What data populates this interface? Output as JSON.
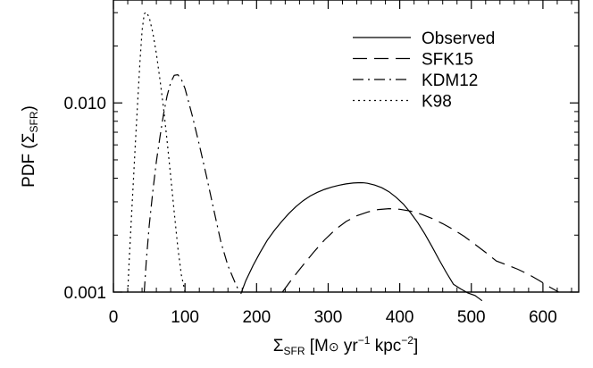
{
  "chart_data": {
    "type": "line",
    "title": "",
    "xlabel": {
      "symbol": "Σ",
      "sub": "SFR",
      "units_open": " [M",
      "sun": "⊙",
      "units_yr": " yr",
      "yr_exp": "−1",
      "units_kpc": " kpc",
      "kpc_exp": "−2",
      "units_close": "]"
    },
    "ylabel": {
      "prefix": "PDF (",
      "symbol": "Σ",
      "sub": "SFR",
      "suffix": ")"
    },
    "xlim": [
      0,
      650
    ],
    "ylim": [
      0.001,
      0.035
    ],
    "y_scale": "log",
    "grid": false,
    "legend_position": "top-right",
    "x_ticks": [
      0,
      100,
      200,
      300,
      400,
      500,
      600
    ],
    "x_tick_labels": [
      "0",
      "100",
      "200",
      "300",
      "400",
      "500",
      "600"
    ],
    "y_ticks": [
      0.001,
      0.01
    ],
    "y_tick_labels": [
      "0.001",
      "0.010"
    ],
    "series": [
      {
        "name": "Observed",
        "dash": "solid",
        "x": [
          178,
          185,
          195,
          205,
          215,
          225,
          235,
          245,
          255,
          265,
          275,
          285,
          295,
          305,
          315,
          325,
          335,
          345,
          350,
          355,
          365,
          375,
          385,
          395,
          405,
          415,
          425,
          435,
          445,
          455,
          465,
          475,
          485,
          495,
          505,
          510,
          515
        ],
        "y": [
          0.00098,
          0.00115,
          0.00138,
          0.00162,
          0.00188,
          0.00212,
          0.00236,
          0.0026,
          0.00283,
          0.00304,
          0.00322,
          0.00337,
          0.00349,
          0.00359,
          0.00367,
          0.00373,
          0.00377,
          0.00379,
          0.00378,
          0.00376,
          0.00368,
          0.00356,
          0.00339,
          0.00317,
          0.00292,
          0.00263,
          0.00233,
          0.00203,
          0.00174,
          0.00148,
          0.00127,
          0.0011,
          0.00104,
          0.00099,
          0.00096,
          0.00093,
          0.0009
        ]
      },
      {
        "name": "SFK15",
        "dash": "long-dash",
        "x": [
          236,
          250,
          265,
          280,
          295,
          310,
          325,
          340,
          355,
          370,
          385,
          400,
          415,
          430,
          445,
          460,
          475,
          490,
          505,
          520,
          535,
          550,
          565,
          580,
          595,
          610,
          622
        ],
        "y": [
          0.001,
          0.00118,
          0.00139,
          0.00163,
          0.00189,
          0.00214,
          0.00236,
          0.00253,
          0.00265,
          0.00273,
          0.00276,
          0.00274,
          0.00268,
          0.00258,
          0.00245,
          0.0023,
          0.00214,
          0.00197,
          0.00179,
          0.00162,
          0.00146,
          0.00139,
          0.00132,
          0.00124,
          0.00115,
          0.00106,
          0.001
        ]
      },
      {
        "name": "KDM12",
        "dash": "dash-dot",
        "x": [
          43,
          46,
          50,
          55,
          60,
          65,
          70,
          75,
          80,
          85,
          90,
          95,
          100,
          110,
          120,
          130,
          140,
          150,
          160,
          170,
          176
        ],
        "y": [
          0.001,
          0.00148,
          0.00225,
          0.0034,
          0.0049,
          0.0066,
          0.0087,
          0.0109,
          0.0128,
          0.014,
          0.0141,
          0.0133,
          0.0119,
          0.0086,
          0.006,
          0.0041,
          0.00275,
          0.00185,
          0.00138,
          0.00112,
          0.001
        ]
      },
      {
        "name": "K98",
        "dash": "dotted",
        "x": [
          20,
          22,
          25,
          28,
          31,
          34,
          37,
          40,
          43,
          46,
          50,
          55,
          60,
          65,
          70,
          75,
          80,
          85,
          90,
          95,
          100
        ],
        "y": [
          0.001,
          0.00145,
          0.0024,
          0.0039,
          0.0064,
          0.0104,
          0.0165,
          0.0241,
          0.0296,
          0.0302,
          0.0283,
          0.0235,
          0.0182,
          0.0133,
          0.0094,
          0.0063,
          0.0041,
          0.00264,
          0.00172,
          0.00123,
          0.001
        ]
      }
    ]
  }
}
